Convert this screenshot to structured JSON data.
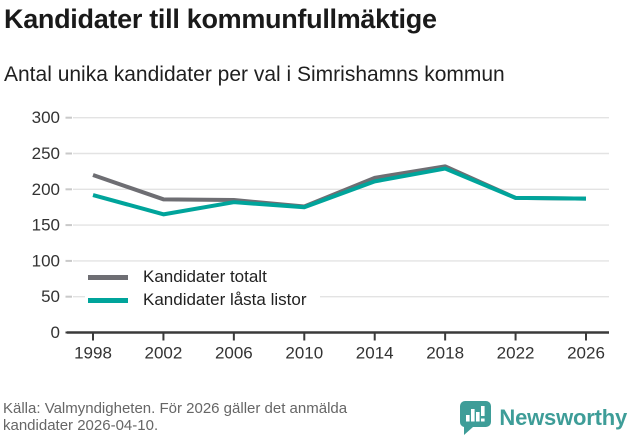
{
  "header": {
    "title": "Kandidater till kommunfullmäktige",
    "subtitle": "Antal unika kandidater per val i Simrishamns kommun"
  },
  "chart_data": {
    "type": "line",
    "title": "Kandidater till kommunfullmäktige",
    "subtitle": "Antal unika kandidater per val i Simrishamns kommun",
    "categories": [
      "1998",
      "2002",
      "2006",
      "2010",
      "2014",
      "2018",
      "2022",
      "2026"
    ],
    "series": [
      {
        "name": "Kandidater totalt",
        "color": "#6e6e73",
        "values": [
          220,
          186,
          185,
          176,
          216,
          232,
          188,
          187
        ]
      },
      {
        "name": "Kandidater låsta listor",
        "color": "#00a49b",
        "values": [
          192,
          165,
          182,
          175,
          211,
          229,
          188,
          187
        ]
      }
    ],
    "xlabel": "",
    "ylabel": "",
    "ylim": [
      0,
      300
    ],
    "yticks": [
      0,
      50,
      100,
      150,
      200,
      250,
      300
    ],
    "grid": "horizontal",
    "legend_position": "inside-bottom-left"
  },
  "footer": {
    "source_line1": "Källa: Valmyndigheten. För 2026 gäller det anmälda",
    "source_line2": "kandidater 2026-04-10.",
    "brand": "Newsworthy"
  },
  "colors": {
    "line_gray": "#6e6e73",
    "line_teal": "#00a49b",
    "brand_teal": "#3e9d98",
    "gridline": "#e3e3e3",
    "axis": "#3a3a3a"
  }
}
